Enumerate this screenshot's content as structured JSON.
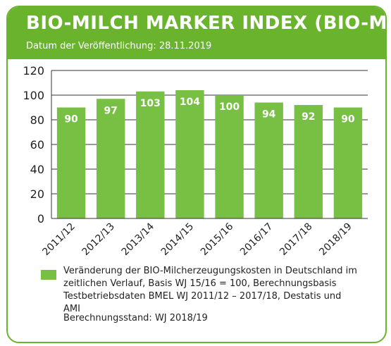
{
  "header": {
    "title": "BIO-MILCH MARKER INDEX (BIO-MMI)",
    "subtitle": "Datum der Veröffentlichung: 28.11.2019"
  },
  "colors": {
    "brand_green": "#6ab42d",
    "bar_green": "#77c043",
    "grid": "#333333"
  },
  "chart_data": {
    "type": "bar",
    "categories": [
      "2011/12",
      "2012/13",
      "2013/14",
      "2014/15",
      "2015/16",
      "2016/17",
      "2017/18",
      "2018/19"
    ],
    "values": [
      90,
      97,
      103,
      104,
      100,
      94,
      92,
      90
    ],
    "data_labels": [
      "90",
      "97",
      "103",
      "104",
      "100",
      "94",
      "92",
      "90"
    ],
    "ylim": [
      0,
      120
    ],
    "yticks": [
      0,
      20,
      40,
      60,
      80,
      100,
      120
    ],
    "grid": true,
    "legend_position": "bottom"
  },
  "legend": {
    "text": "Veränderung der BIO-Milcherzeugungskosten in Deutschland im zeitlichen Verlauf, Basis WJ 15/16 = 100, Berechnungsbasis Testbetriebsdaten BMEL WJ 2011/12 – 2017/18, Destatis und AMI",
    "status": "Berechnungsstand: WJ 2018/19"
  }
}
